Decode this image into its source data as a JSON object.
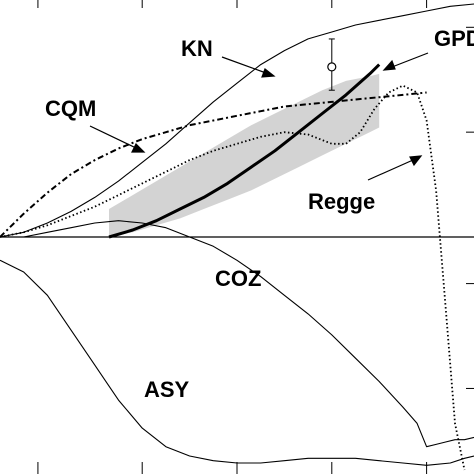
{
  "chart_data": {
    "type": "line",
    "title": "",
    "xlabel": "",
    "ylabel": "",
    "xlim": [
      0,
      1
    ],
    "ylim": [
      -1,
      1
    ],
    "grid": false,
    "series": [
      {
        "name": "KN",
        "style": "solid-thin",
        "x": [
          0,
          0.05,
          0.1,
          0.15,
          0.2,
          0.25,
          0.3,
          0.35,
          0.4,
          0.45,
          0.5,
          0.55,
          0.6,
          0.65,
          0.7,
          0.75,
          0.8,
          0.85,
          0.9,
          0.95,
          1.0
        ],
        "y": [
          0.0,
          0.02,
          0.06,
          0.11,
          0.17,
          0.24,
          0.32,
          0.4,
          0.49,
          0.58,
          0.66,
          0.74,
          0.8,
          0.85,
          0.88,
          0.91,
          0.93,
          0.95,
          0.97,
          0.99,
          1.0
        ]
      },
      {
        "name": "CQM",
        "style": "dash-dot",
        "x": [
          0.0,
          0.05,
          0.1,
          0.15,
          0.2,
          0.25,
          0.3,
          0.35,
          0.4,
          0.45,
          0.5,
          0.55,
          0.6,
          0.65,
          0.7,
          0.75,
          0.8,
          0.85,
          0.9
        ],
        "y": [
          0.0,
          0.1,
          0.19,
          0.27,
          0.33,
          0.38,
          0.42,
          0.45,
          0.48,
          0.5,
          0.52,
          0.54,
          0.56,
          0.57,
          0.58,
          0.59,
          0.6,
          0.61,
          0.62
        ]
      },
      {
        "name": "GPD",
        "style": "solid-thick",
        "x": [
          0.23,
          0.28,
          0.33,
          0.38,
          0.43,
          0.48,
          0.53,
          0.58,
          0.63,
          0.68,
          0.73,
          0.78,
          0.8
        ],
        "y": [
          0.0,
          0.03,
          0.07,
          0.12,
          0.17,
          0.23,
          0.3,
          0.37,
          0.45,
          0.53,
          0.61,
          0.7,
          0.74
        ]
      },
      {
        "name": "Regge",
        "style": "dotted",
        "x": [
          0.0,
          0.05,
          0.1,
          0.15,
          0.2,
          0.25,
          0.3,
          0.35,
          0.4,
          0.45,
          0.5,
          0.55,
          0.6,
          0.65,
          0.7,
          0.73,
          0.76,
          0.79,
          0.82,
          0.85,
          0.88,
          0.9,
          0.92,
          0.94,
          0.96,
          0.98
        ],
        "y": [
          0.0,
          0.02,
          0.05,
          0.09,
          0.13,
          0.18,
          0.23,
          0.28,
          0.33,
          0.37,
          0.4,
          0.43,
          0.45,
          0.44,
          0.4,
          0.4,
          0.45,
          0.55,
          0.62,
          0.65,
          0.62,
          0.5,
          0.2,
          -0.3,
          -0.8,
          -1.0
        ]
      },
      {
        "name": "COZ",
        "style": "solid-thin",
        "x": [
          0.0,
          0.05,
          0.1,
          0.15,
          0.2,
          0.25,
          0.3,
          0.35,
          0.4,
          0.45,
          0.5,
          0.55,
          0.6,
          0.65,
          0.7,
          0.75,
          0.8,
          0.85,
          0.88,
          0.9,
          0.92,
          0.94,
          0.96,
          0.98,
          1.0
        ],
        "y": [
          0.0,
          0.0,
          0.02,
          0.04,
          0.06,
          0.07,
          0.06,
          0.04,
          0.0,
          -0.04,
          -0.1,
          -0.17,
          -0.25,
          -0.33,
          -0.42,
          -0.52,
          -0.62,
          -0.73,
          -0.8,
          -0.9,
          -0.89,
          -0.88,
          -0.87,
          -0.87,
          -0.86
        ]
      },
      {
        "name": "ASY",
        "style": "solid-thin",
        "x": [
          0.0,
          0.05,
          0.1,
          0.15,
          0.2,
          0.25,
          0.3,
          0.35,
          0.4,
          0.45,
          0.5,
          0.55,
          0.6,
          0.65,
          0.7,
          0.75,
          0.8,
          0.85,
          0.9,
          0.95,
          0.98,
          1.0
        ],
        "y": [
          -0.1,
          -0.15,
          -0.25,
          -0.4,
          -0.55,
          -0.7,
          -0.82,
          -0.9,
          -0.94,
          -0.96,
          -0.97,
          -0.97,
          -0.96,
          -0.95,
          -0.95,
          -0.95,
          -0.96,
          -0.97,
          -0.98,
          -0.97,
          -0.95,
          -0.94
        ]
      }
    ],
    "band": {
      "name": "GPD uncertainty",
      "x": [
        0.23,
        0.28,
        0.33,
        0.38,
        0.43,
        0.48,
        0.53,
        0.58,
        0.63,
        0.68,
        0.73,
        0.78,
        0.8
      ],
      "lower": [
        0.0,
        0.02,
        0.05,
        0.08,
        0.12,
        0.16,
        0.2,
        0.25,
        0.3,
        0.35,
        0.4,
        0.45,
        0.47
      ],
      "upper": [
        0.12,
        0.18,
        0.24,
        0.3,
        0.36,
        0.42,
        0.48,
        0.53,
        0.58,
        0.63,
        0.67,
        0.69,
        0.7
      ]
    },
    "data_point": {
      "x": 0.7,
      "y": 0.73,
      "err_low": 0.63,
      "err_high": 0.85
    },
    "labels": {
      "kn": "KN",
      "gpd": "GPD",
      "cqm": "CQM",
      "regge": "Regge",
      "coz": "COZ",
      "asy": "ASY"
    }
  }
}
